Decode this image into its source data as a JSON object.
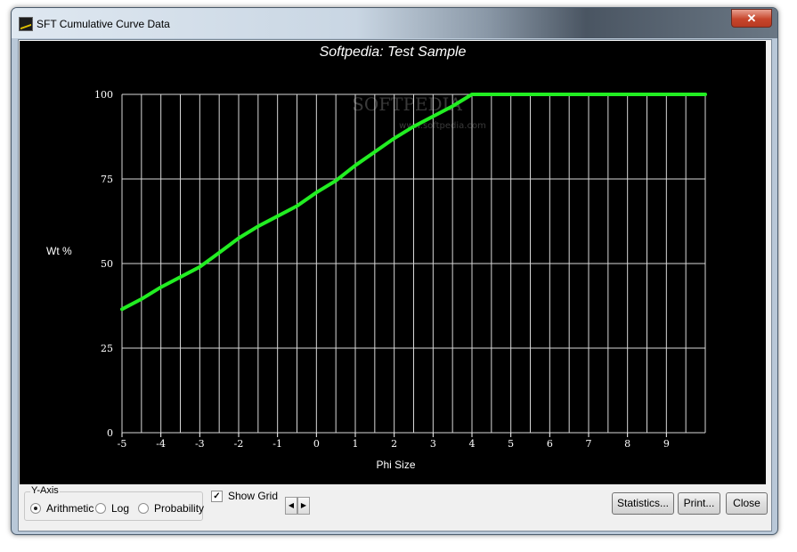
{
  "window": {
    "title": "SFT Cumulative Curve Data",
    "close_glyph": "✕"
  },
  "chart_data": {
    "type": "line",
    "title": "Softpedia: Test Sample",
    "xlabel": "Phi Size",
    "ylabel": "Wt %",
    "xlim": [
      -5,
      10
    ],
    "ylim": [
      0,
      100
    ],
    "x_ticks": [
      -5,
      -4,
      -3,
      -2,
      -1,
      0,
      1,
      2,
      3,
      4,
      5,
      6,
      7,
      8,
      9
    ],
    "x_tick_labels": [
      "-5",
      "-4",
      "-3",
      "-2",
      "-1",
      "0",
      "1",
      "2",
      "3",
      "4",
      "5",
      "6",
      "7",
      "8",
      "9"
    ],
    "y_ticks": [
      0,
      25,
      50,
      75,
      100
    ],
    "y_tick_labels": [
      "0",
      "25",
      "50",
      "75",
      "100"
    ],
    "grid": true,
    "series": [
      {
        "color": "#22ee22",
        "x": [
          -5,
          -4.5,
          -4,
          -3.5,
          -3,
          -2.7,
          -2,
          -1.5,
          -1,
          -0.5,
          0,
          0.5,
          1,
          1.5,
          2,
          2.5,
          3,
          3.5,
          4,
          5,
          6,
          7,
          8,
          9,
          10
        ],
        "y": [
          36.5,
          39.5,
          43,
          46,
          49,
          51.5,
          57.5,
          61,
          64,
          67,
          71,
          74.5,
          79,
          83,
          87,
          90.5,
          93.5,
          96.5,
          100,
          100,
          100,
          100,
          100,
          100,
          100
        ]
      }
    ]
  },
  "watermark": {
    "main": "SOFTPEDIA",
    "sub": "www.softpedia.com"
  },
  "controls": {
    "y_axis_group_label": "Y-Axis",
    "radio_options": [
      {
        "label": "Arithmetic",
        "checked": true
      },
      {
        "label": "Log",
        "checked": false
      },
      {
        "label": "Probability",
        "checked": false
      }
    ],
    "show_grid_label": "Show Grid",
    "show_grid_checked": true,
    "check_glyph": "✓",
    "spin_left_glyph": "◀",
    "spin_right_glyph": "▶",
    "statistics_label": "Statistics...",
    "print_label": "Print...",
    "close_label": "Close"
  }
}
